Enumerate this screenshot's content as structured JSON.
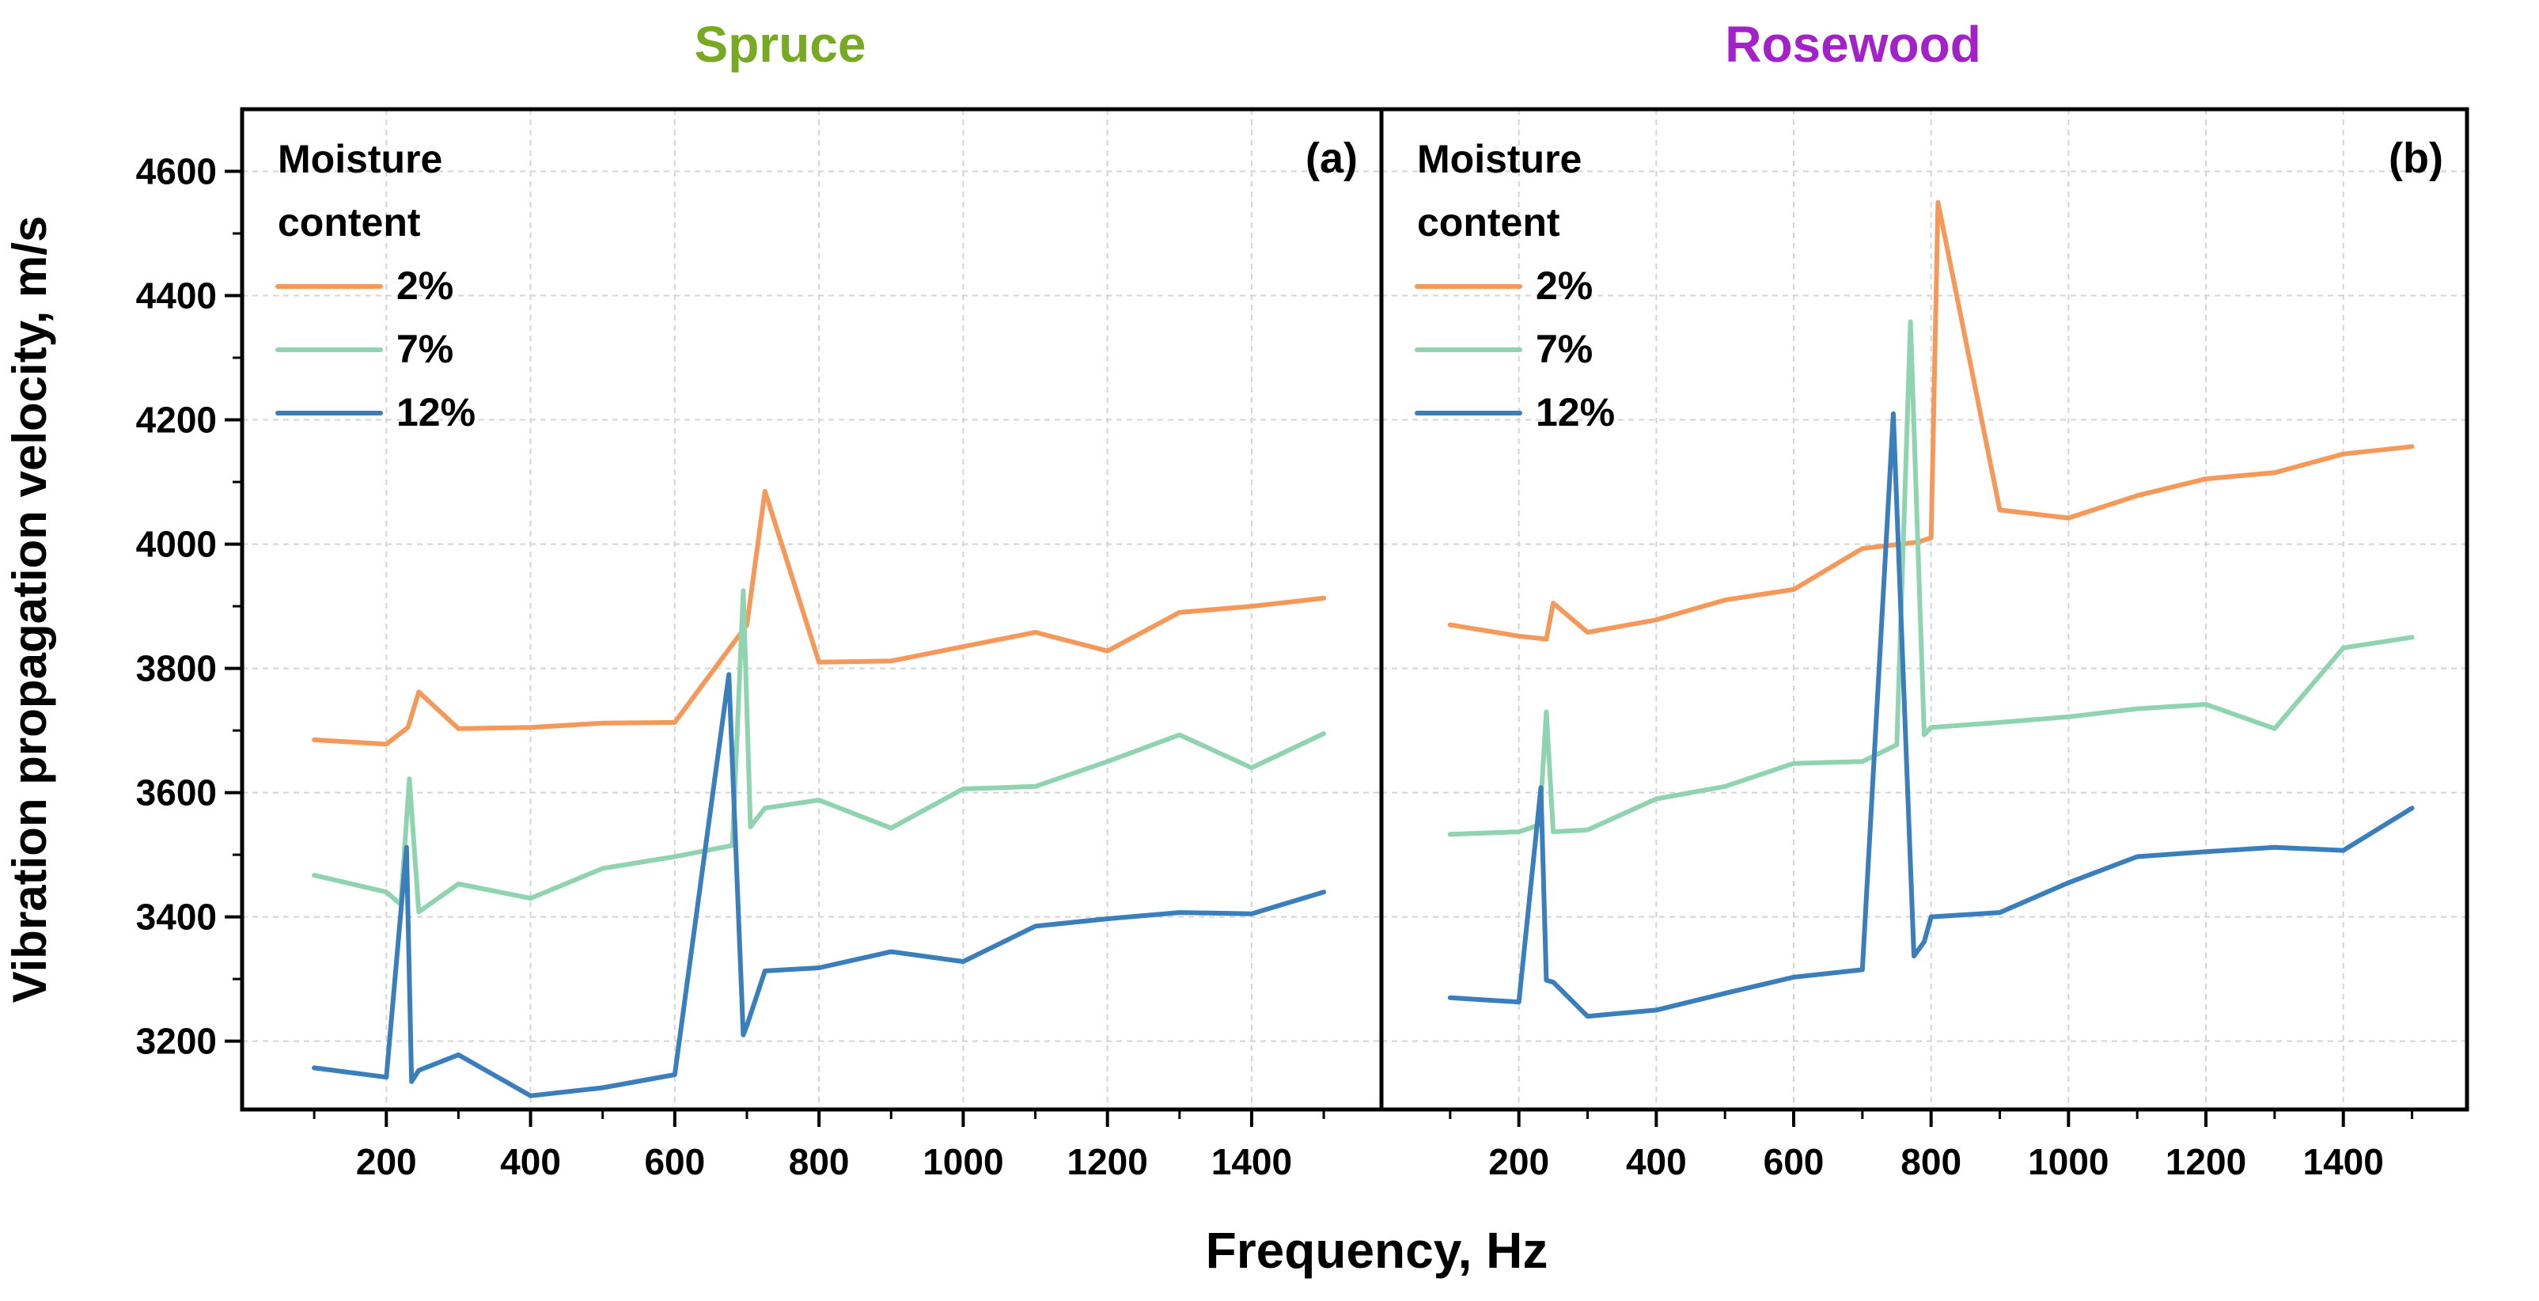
{
  "figure": {
    "xlabel": "Frequency, Hz",
    "ylabel": "Vibration propagation velocity, m/s"
  },
  "chart_data": [
    {
      "type": "line",
      "title": "Spruce",
      "title_color": "#77AA22",
      "panel_label": "(a)",
      "legend_title": "Moisture content",
      "legend_position": "top-left",
      "xlabel": "Frequency, Hz",
      "ylabel": "Vibration propagation velocity, m/s",
      "xlim": [
        0,
        1580
      ],
      "ylim": [
        3090,
        4700
      ],
      "xticks": [
        200,
        400,
        600,
        800,
        1000,
        1200,
        1400
      ],
      "yticks": [
        3200,
        3400,
        3600,
        3800,
        4000,
        4200,
        4400,
        4600
      ],
      "grid": true,
      "series": [
        {
          "name": "2%",
          "color": "#F4995A",
          "x": [
            100,
            200,
            230,
            245,
            300,
            400,
            500,
            600,
            700,
            725,
            800,
            900,
            1000,
            1100,
            1200,
            1300,
            1400,
            1500
          ],
          "y": [
            3685,
            3678,
            3705,
            3762,
            3703,
            3705,
            3712,
            3713,
            3870,
            4085,
            3810,
            3812,
            3835,
            3858,
            3828,
            3890,
            3900,
            3913
          ]
        },
        {
          "name": "7%",
          "color": "#8FD3B0",
          "x": [
            100,
            200,
            220,
            232,
            245,
            300,
            400,
            500,
            600,
            680,
            695,
            705,
            725,
            800,
            900,
            1000,
            1100,
            1200,
            1300,
            1400,
            1500
          ],
          "y": [
            3467,
            3440,
            3420,
            3622,
            3408,
            3453,
            3430,
            3478,
            3497,
            3515,
            3925,
            3545,
            3575,
            3588,
            3543,
            3606,
            3610,
            3650,
            3693,
            3640,
            3695
          ]
        },
        {
          "name": "12%",
          "color": "#3A7EBB",
          "x": [
            100,
            200,
            228,
            235,
            245,
            300,
            400,
            500,
            600,
            675,
            695,
            700,
            725,
            800,
            900,
            1000,
            1100,
            1200,
            1300,
            1400,
            1500
          ],
          "y": [
            3157,
            3142,
            3512,
            3135,
            3153,
            3178,
            3112,
            3125,
            3146,
            3790,
            3210,
            3225,
            3313,
            3318,
            3344,
            3328,
            3385,
            3397,
            3407,
            3405,
            3440
          ]
        }
      ]
    },
    {
      "type": "line",
      "title": "Rosewood",
      "title_color": "#A221C9",
      "panel_label": "(b)",
      "legend_title": "Moisture content",
      "legend_position": "top-left",
      "xlabel": "Frequency, Hz",
      "ylabel": "",
      "xlim": [
        0,
        1580
      ],
      "ylim": [
        3090,
        4700
      ],
      "xticks": [
        200,
        400,
        600,
        800,
        1000,
        1200,
        1400
      ],
      "yticks": [
        3200,
        3400,
        3600,
        3800,
        4000,
        4200,
        4400,
        4600
      ],
      "grid": true,
      "series": [
        {
          "name": "2%",
          "color": "#F4995A",
          "x": [
            100,
            200,
            240,
            250,
            300,
            400,
            500,
            600,
            700,
            780,
            800,
            810,
            900,
            1000,
            1100,
            1200,
            1300,
            1400,
            1500
          ],
          "y": [
            3870,
            3852,
            3847,
            3905,
            3858,
            3878,
            3910,
            3927,
            3993,
            4003,
            4010,
            4550,
            4055,
            4042,
            4078,
            4105,
            4115,
            4145,
            4157
          ]
        },
        {
          "name": "7%",
          "color": "#8FD3B0",
          "x": [
            100,
            200,
            230,
            240,
            250,
            300,
            400,
            500,
            600,
            700,
            750,
            770,
            790,
            800,
            900,
            1000,
            1100,
            1200,
            1300,
            1400,
            1500
          ],
          "y": [
            3533,
            3537,
            3548,
            3730,
            3537,
            3540,
            3590,
            3610,
            3647,
            3650,
            3677,
            4358,
            3693,
            3705,
            3713,
            3722,
            3735,
            3742,
            3703,
            3833,
            3850
          ]
        },
        {
          "name": "12%",
          "color": "#3A7EBB",
          "x": [
            100,
            200,
            232,
            240,
            250,
            300,
            400,
            500,
            600,
            700,
            745,
            775,
            790,
            800,
            900,
            1000,
            1100,
            1200,
            1300,
            1400,
            1500
          ],
          "y": [
            3270,
            3263,
            3608,
            3298,
            3295,
            3240,
            3250,
            3277,
            3303,
            3315,
            4210,
            3337,
            3360,
            3400,
            3407,
            3455,
            3497,
            3505,
            3512,
            3507,
            3575
          ]
        }
      ]
    }
  ]
}
